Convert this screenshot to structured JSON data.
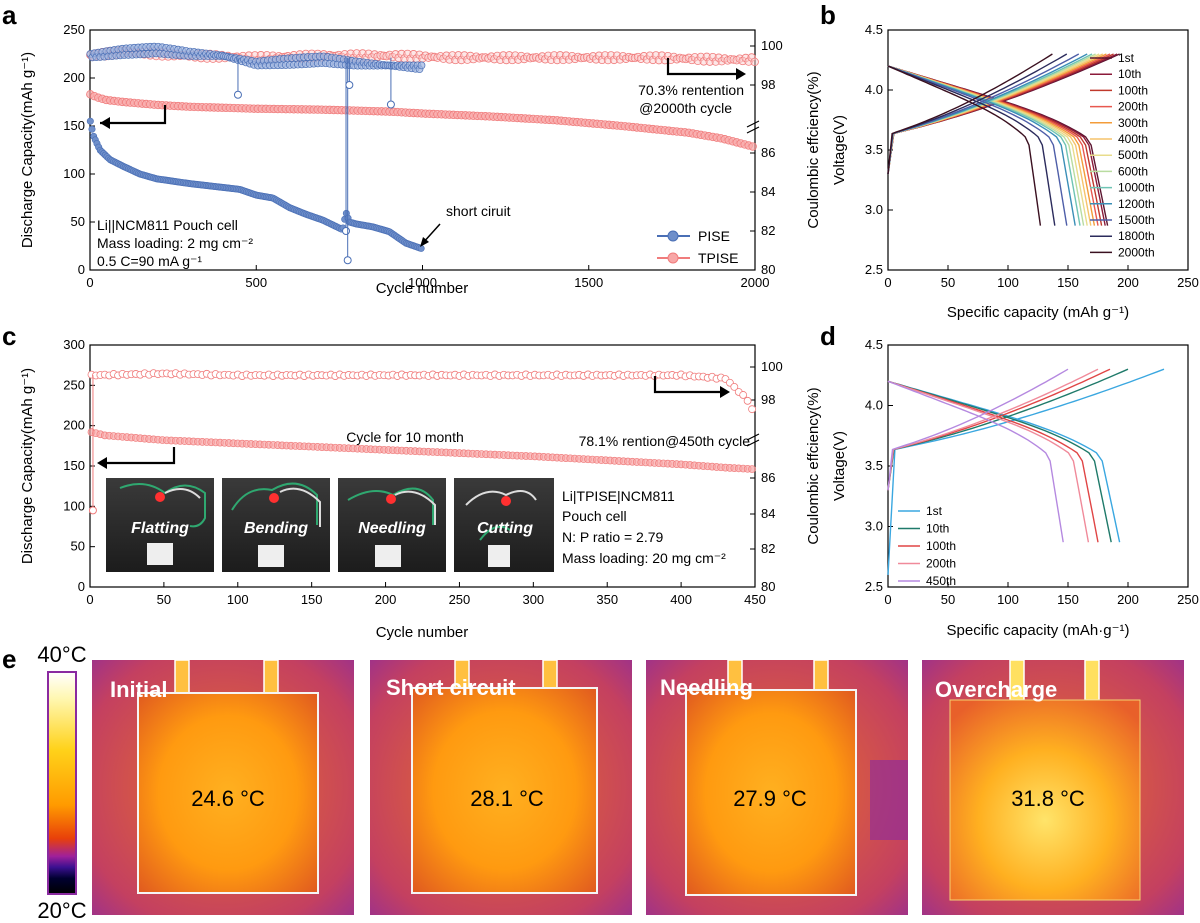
{
  "panels": {
    "a": "a",
    "b": "b",
    "c": "c",
    "d": "d",
    "e": "e"
  },
  "colors": {
    "pise": "#4a6fb5",
    "tpise": "#f07c7c",
    "axis": "#000000"
  },
  "chart_data": [
    {
      "id": "a",
      "type": "scatter",
      "xlabel": "Cycle number",
      "ylabel": "Discharge Capacity(mAh g⁻¹)",
      "y2label": "Coulombic effciency(%)",
      "xlim": [
        0,
        2000
      ],
      "ylim": [
        0,
        250
      ],
      "y2lim": [
        80,
        100.5
      ],
      "xticks": [
        "0",
        "500",
        "1000",
        "1500",
        "2000"
      ],
      "yticks": [
        "0",
        "50",
        "100",
        "150",
        "200",
        "250"
      ],
      "y2ticks": [
        "80",
        "82",
        "84",
        "86",
        "98",
        "100"
      ],
      "legend": [
        "PISE",
        "TPISE"
      ],
      "annotations": {
        "retention": "70.3% rentention",
        "retention2": "@2000th cycle",
        "short": "short ciruit",
        "cell1": "Li||NCM811 Pouch cell",
        "cell2": "Mass loading: 2 mg cm⁻²",
        "cell3": "0.5 C=90 mA g⁻¹"
      },
      "series": [
        {
          "name": "TPISE capacity",
          "x": [
            1,
            20,
            50,
            100,
            200,
            300,
            500,
            700,
            900,
            1000,
            1200,
            1400,
            1600,
            1800,
            1900,
            2000
          ],
          "values": [
            183,
            180,
            177,
            175,
            172,
            170,
            168,
            167,
            165,
            163,
            160,
            156,
            150,
            143,
            137,
            128
          ]
        },
        {
          "name": "PISE capacity",
          "x": [
            1,
            10,
            30,
            60,
            100,
            150,
            200,
            300,
            400,
            450,
            500,
            550,
            600,
            650,
            700,
            760,
            770,
            780,
            800,
            850,
            900,
            950,
            1000
          ],
          "values": [
            155,
            140,
            125,
            115,
            108,
            100,
            95,
            90,
            86,
            84,
            78,
            75,
            65,
            58,
            52,
            42,
            60,
            50,
            48,
            45,
            40,
            28,
            22
          ]
        },
        {
          "name": "TPISE CE",
          "x": [
            1,
            100,
            300,
            500,
            700,
            900,
            1100,
            1300,
            1500,
            1700,
            1900,
            2000
          ],
          "values": [
            99.5,
            99.7,
            99.5,
            99.4,
            99.5,
            99.5,
            99.4,
            99.4,
            99.4,
            99.4,
            99.3,
            99.3
          ]
        },
        {
          "name": "PISE CE",
          "x": [
            1,
            100,
            200,
            300,
            400,
            500,
            600,
            700,
            800,
            900,
            1000
          ],
          "values": [
            99.5,
            99.7,
            99.8,
            99.6,
            99.5,
            99.1,
            99.2,
            99.3,
            99.1,
            99.0,
            98.9
          ]
        }
      ]
    },
    {
      "id": "b",
      "type": "line",
      "xlabel": "Specific capacity (mAh g⁻¹)",
      "ylabel": "Voltage(V)",
      "xlim": [
        0,
        250
      ],
      "ylim": [
        2.5,
        4.5
      ],
      "xticks": [
        "0",
        "50",
        "100",
        "150",
        "200",
        "250"
      ],
      "yticks": [
        "2.5",
        "3.0",
        "3.5",
        "4.0",
        "4.5"
      ],
      "series": [
        {
          "name": "1st",
          "color": "#5c1530",
          "capacity": 183
        },
        {
          "name": "10th",
          "color": "#8b1a3a",
          "capacity": 181
        },
        {
          "name": "100th",
          "color": "#c0392b",
          "capacity": 178
        },
        {
          "name": "200th",
          "color": "#e8584f",
          "capacity": 175
        },
        {
          "name": "300th",
          "color": "#f39c3a",
          "capacity": 172
        },
        {
          "name": "400th",
          "color": "#f6c36b",
          "capacity": 169
        },
        {
          "name": "500th",
          "color": "#e8dc8c",
          "capacity": 166
        },
        {
          "name": "600th",
          "color": "#b9dca0",
          "capacity": 163
        },
        {
          "name": "1000th",
          "color": "#6fc4b4",
          "capacity": 160
        },
        {
          "name": "1200th",
          "color": "#3a8fb7",
          "capacity": 156
        },
        {
          "name": "1500th",
          "color": "#4e5ea8",
          "capacity": 149
        },
        {
          "name": "1800th",
          "color": "#2b2b5c",
          "capacity": 139
        },
        {
          "name": "2000th",
          "color": "#3a1020",
          "capacity": 127
        }
      ]
    },
    {
      "id": "c",
      "type": "scatter",
      "xlabel": "Cycle number",
      "ylabel": "Discharge Capacity(mAh g⁻¹)",
      "y2label": "Coulombic effciency(%)",
      "xlim": [
        0,
        450
      ],
      "ylim": [
        0,
        300
      ],
      "y2lim": [
        80,
        100.5
      ],
      "xticks": [
        "0",
        "50",
        "100",
        "150",
        "200",
        "250",
        "300",
        "350",
        "400",
        "450"
      ],
      "yticks": [
        "0",
        "50",
        "100",
        "150",
        "200",
        "250",
        "300"
      ],
      "y2ticks": [
        "80",
        "82",
        "84",
        "86",
        "98",
        "100"
      ],
      "annotations": {
        "cycle": "Cycle for 10 month",
        "retention": "78.1% rention@450th cycle",
        "cell1": "Li|TPISE|NCM811",
        "cell2": "Pouch cell",
        "cell3": "N: P ratio = 2.79",
        "cell4": "Mass loading: 20 mg cm⁻²"
      },
      "photos": [
        "Flatting",
        "Bending",
        "Needling",
        "Cutting"
      ],
      "series": [
        {
          "name": "capacity",
          "x": [
            1,
            10,
            50,
            100,
            150,
            200,
            250,
            300,
            350,
            400,
            430,
            450
          ],
          "values": [
            192,
            188,
            182,
            178,
            174,
            170,
            166,
            162,
            157,
            152,
            148,
            146
          ]
        },
        {
          "name": "CE",
          "x": [
            1,
            50,
            100,
            200,
            300,
            400,
            430,
            445,
            450
          ],
          "values": [
            99.5,
            99.6,
            99.5,
            99.5,
            99.5,
            99.5,
            99.3,
            98.0,
            97.0
          ]
        }
      ]
    },
    {
      "id": "d",
      "type": "line",
      "xlabel": "Specific capacity (mAh·g⁻¹)",
      "ylabel": "Voltage(V)",
      "xlim": [
        0,
        250
      ],
      "ylim": [
        2.5,
        4.5
      ],
      "xticks": [
        "0",
        "50",
        "100",
        "150",
        "200",
        "250"
      ],
      "yticks": [
        "2.5",
        "3.0",
        "3.5",
        "4.0",
        "4.5"
      ],
      "series": [
        {
          "name": "1st",
          "color": "#3aa7e0",
          "capacity": 193,
          "charge": 230
        },
        {
          "name": "10th",
          "color": "#1f7a6a",
          "capacity": 186,
          "charge": 200
        },
        {
          "name": "100th",
          "color": "#e04545",
          "capacity": 175,
          "charge": 185
        },
        {
          "name": "200th",
          "color": "#f08a9a",
          "capacity": 167,
          "charge": 175
        },
        {
          "name": "450th",
          "color": "#b589e0",
          "capacity": 146,
          "charge": 150
        }
      ]
    }
  ],
  "thermal": {
    "scale_max": "40°C",
    "scale_min": "20°C",
    "images": [
      {
        "title": "Initial",
        "temp": "24.6 °C"
      },
      {
        "title": "Short circuit",
        "temp": "28.1 °C"
      },
      {
        "title": "Needling",
        "temp": "27.9 °C"
      },
      {
        "title": "Overcharge",
        "temp": "31.8 °C"
      }
    ]
  }
}
